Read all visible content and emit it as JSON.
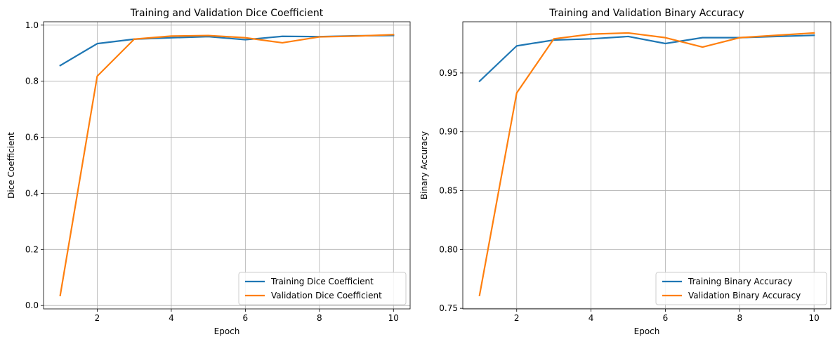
{
  "colors": {
    "training": "#1f77b4",
    "validation": "#ff7f0e",
    "grid": "#b0b0b0"
  },
  "chart_data": [
    {
      "type": "line",
      "title": "Training and Validation Dice Coefficient",
      "xlabel": "Epoch",
      "ylabel": "Dice Coefficient",
      "x": [
        1,
        2,
        3,
        4,
        5,
        6,
        7,
        8,
        9,
        10
      ],
      "xlim": [
        0.55,
        10.45
      ],
      "ylim": [
        -0.012,
        1.012
      ],
      "xticks": [
        2,
        4,
        6,
        8,
        10
      ],
      "xtick_labels": [
        "2",
        "4",
        "6",
        "8",
        "10"
      ],
      "yticks": [
        0.0,
        0.2,
        0.4,
        0.6,
        0.8,
        1.0
      ],
      "ytick_labels": [
        "0.0",
        "0.2",
        "0.4",
        "0.6",
        "0.8",
        "1.0"
      ],
      "grid": true,
      "legend_position": "lower-right",
      "series": [
        {
          "name": "Training Dice Coefficient",
          "color": "#1f77b4",
          "values": [
            0.856,
            0.934,
            0.95,
            0.955,
            0.959,
            0.948,
            0.96,
            0.959,
            0.962,
            0.963
          ]
        },
        {
          "name": "Validation Dice Coefficient",
          "color": "#ff7f0e",
          "values": [
            0.036,
            0.818,
            0.95,
            0.961,
            0.963,
            0.955,
            0.937,
            0.958,
            0.961,
            0.966
          ]
        }
      ]
    },
    {
      "type": "line",
      "title": "Training and Validation Binary Accuracy",
      "xlabel": "Epoch",
      "ylabel": "Binary Accuracy",
      "x": [
        1,
        2,
        3,
        4,
        5,
        6,
        7,
        8,
        9,
        10
      ],
      "xlim": [
        0.55,
        10.45
      ],
      "ylim": [
        0.7495,
        0.9935
      ],
      "xticks": [
        2,
        4,
        6,
        8,
        10
      ],
      "xtick_labels": [
        "2",
        "4",
        "6",
        "8",
        "10"
      ],
      "yticks": [
        0.75,
        0.8,
        0.85,
        0.9,
        0.95
      ],
      "ytick_labels": [
        "0.75",
        "0.80",
        "0.85",
        "0.90",
        "0.95"
      ],
      "grid": true,
      "legend_position": "lower-right",
      "series": [
        {
          "name": "Training Binary Accuracy",
          "color": "#1f77b4",
          "values": [
            0.943,
            0.973,
            0.978,
            0.979,
            0.981,
            0.975,
            0.98,
            0.98,
            0.981,
            0.982
          ]
        },
        {
          "name": "Validation Binary Accuracy",
          "color": "#ff7f0e",
          "values": [
            0.761,
            0.933,
            0.979,
            0.983,
            0.984,
            0.98,
            0.972,
            0.98,
            0.982,
            0.984
          ]
        }
      ]
    }
  ]
}
